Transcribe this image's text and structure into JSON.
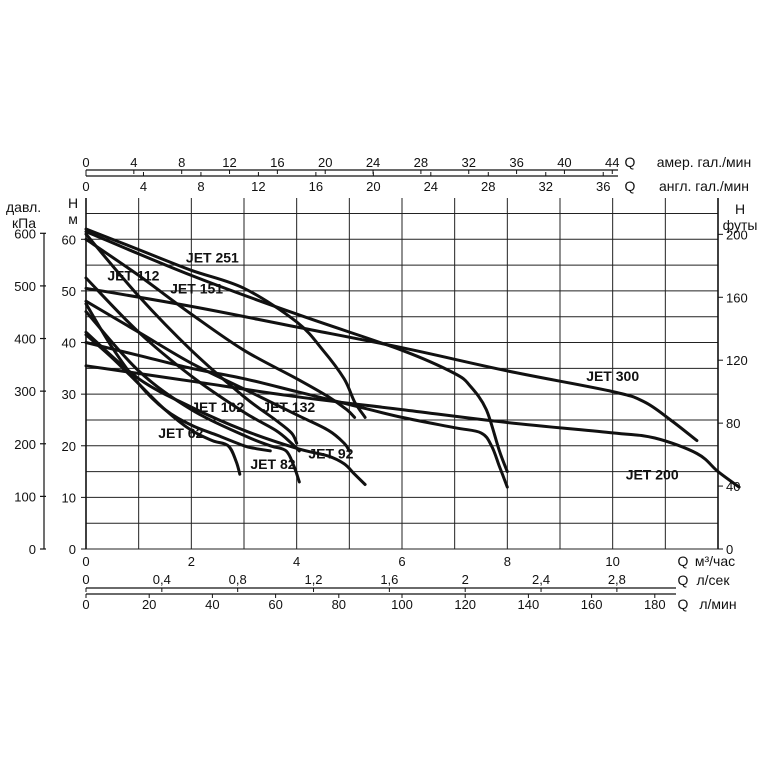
{
  "chart_data": {
    "type": "line",
    "title": "",
    "grid": true,
    "axes": {
      "x_primary": {
        "label_q": "Q",
        "unit": "м³/час",
        "range": [
          0,
          12
        ],
        "ticks": [
          0,
          2,
          4,
          6,
          8,
          10
        ]
      },
      "x_bottom_ls": {
        "label_q": "Q",
        "unit": "л/сек",
        "ticks": [
          0,
          0.4,
          0.8,
          1.2,
          1.6,
          2,
          2.4,
          2.8
        ],
        "tick_labels": [
          "0",
          "0,4",
          "0,8",
          "1,2",
          "1,6",
          "2",
          "2,4",
          "2,8"
        ]
      },
      "x_bottom_lmin": {
        "label_q": "Q",
        "unit": "л/мин",
        "ticks": [
          0,
          20,
          40,
          60,
          80,
          100,
          120,
          140,
          160,
          180
        ]
      },
      "x_top_us": {
        "label_q": "Q",
        "unit": "амер. гал./мин",
        "ticks": [
          0,
          4,
          8,
          12,
          16,
          20,
          24,
          28,
          32,
          36,
          40,
          44
        ]
      },
      "x_top_uk": {
        "label_q": "Q",
        "unit": "англ. гал./мин",
        "ticks": [
          0,
          4,
          8,
          12,
          16,
          20,
          24,
          28,
          32,
          36
        ]
      },
      "y_head_m": {
        "label_h": "H",
        "unit": "м",
        "range": [
          0,
          68
        ],
        "ticks": [
          0,
          10,
          20,
          30,
          40,
          50,
          60
        ]
      },
      "y_kpa": {
        "label_line1": "давл.",
        "label_line2": "кПа",
        "ticks": [
          0,
          100,
          200,
          300,
          400,
          500,
          600
        ]
      },
      "y_ft": {
        "label_h": "H",
        "unit": "футы",
        "ticks": [
          0,
          40,
          80,
          120,
          160,
          200
        ]
      }
    },
    "series": [
      {
        "name": "JET 62",
        "x": [
          0,
          0.5,
          1,
          1.5,
          2,
          2.4,
          2.7,
          2.85,
          2.92
        ],
        "y": [
          41.5,
          37,
          32,
          27,
          23,
          21,
          20,
          17,
          14.5
        ]
      },
      {
        "name": "JET 82",
        "x": [
          0,
          1,
          2,
          3,
          3.5,
          3.8,
          3.95,
          4.05
        ],
        "y": [
          46,
          34.5,
          27,
          22,
          20,
          19,
          16,
          13
        ]
      },
      {
        "name": "JET 92",
        "x": [
          0,
          1,
          2,
          3,
          4,
          4.6,
          4.9,
          5.1,
          5.3
        ],
        "y": [
          42,
          33,
          27.5,
          23,
          19.5,
          18,
          16.5,
          14.5,
          12.5
        ]
      },
      {
        "name": "JET 102",
        "x": [
          0,
          1,
          2,
          3,
          3.6,
          3.9,
          4.05
        ],
        "y": [
          52.5,
          42,
          33.5,
          26.5,
          23,
          20.5,
          19
        ]
      },
      {
        "name": "JET 112",
        "x": [
          0,
          1,
          2,
          3,
          3.6,
          3.9,
          4.0
        ],
        "y": [
          61,
          49,
          38.5,
          29.5,
          25,
          22.5,
          20.5
        ]
      },
      {
        "name": "JET 132",
        "x": [
          0,
          1,
          2,
          3,
          4,
          4.6,
          4.9,
          5.0
        ],
        "y": [
          48,
          42,
          36,
          31,
          26,
          23,
          20.5,
          19
        ]
      },
      {
        "name": "JET 151",
        "x": [
          0,
          1,
          2,
          3,
          4,
          4.6,
          4.95,
          5.1
        ],
        "y": [
          60,
          53,
          45.5,
          38.5,
          33,
          29.5,
          27,
          25.5
        ]
      },
      {
        "name": "JET 251",
        "x": [
          0,
          1,
          2,
          3,
          4,
          4.5,
          4.9,
          5.1,
          5.3
        ],
        "y": [
          62,
          58,
          54,
          50.5,
          44,
          38.5,
          33,
          28.5,
          25.5
        ]
      },
      {
        "name": "JET 300",
        "x": [
          0,
          2,
          4,
          6,
          8,
          10,
          10.6,
          11.1,
          11.6
        ],
        "y": [
          50.5,
          47,
          43,
          39,
          34.5,
          30.5,
          28.5,
          25,
          21
        ]
      },
      {
        "name": "JET 200",
        "x": [
          0,
          2,
          4,
          6,
          8,
          10,
          10.8,
          11.6,
          12.0,
          12.4
        ],
        "y": [
          35.5,
          32.5,
          29.5,
          27,
          24.5,
          22.5,
          21.5,
          18.5,
          15,
          12
        ]
      },
      {
        "name": "",
        "x": [
          0,
          1,
          2,
          3,
          4,
          5,
          6,
          7,
          7.5,
          7.7,
          7.85,
          8.0
        ],
        "y": [
          40,
          37.5,
          35,
          33,
          30.5,
          28,
          25.5,
          23.5,
          22.5,
          20,
          16,
          12
        ]
      },
      {
        "name": "",
        "x": [
          0,
          2,
          4,
          6,
          7,
          7.3,
          7.6,
          7.85,
          8.0
        ],
        "y": [
          61.5,
          53,
          45.5,
          38.5,
          34,
          31.5,
          27,
          19,
          15
        ]
      },
      {
        "name": "",
        "x": [
          0,
          0.5,
          1,
          1.5,
          2,
          2.5,
          3,
          3.2,
          3.5
        ],
        "y": [
          47.5,
          39,
          32,
          27,
          24,
          22,
          20,
          19.5,
          19
        ]
      }
    ],
    "labels": [
      {
        "text": "JET 62",
        "x": 1.8,
        "y": 21.5
      },
      {
        "text": "JET 82",
        "x": 3.55,
        "y": 15.5
      },
      {
        "text": "JET 92",
        "x": 4.65,
        "y": 17.5
      },
      {
        "text": "JET 102",
        "x": 2.5,
        "y": 26.5
      },
      {
        "text": "JET 112",
        "x": 0.9,
        "y": 52
      },
      {
        "text": "JET 132",
        "x": 3.85,
        "y": 26.5
      },
      {
        "text": "JET 151",
        "x": 2.1,
        "y": 49.5
      },
      {
        "text": "JET 251",
        "x": 2.4,
        "y": 55.5
      },
      {
        "text": "JET 300",
        "x": 10.0,
        "y": 32.5
      },
      {
        "text": "JET 200",
        "x": 10.75,
        "y": 13.5
      }
    ]
  }
}
